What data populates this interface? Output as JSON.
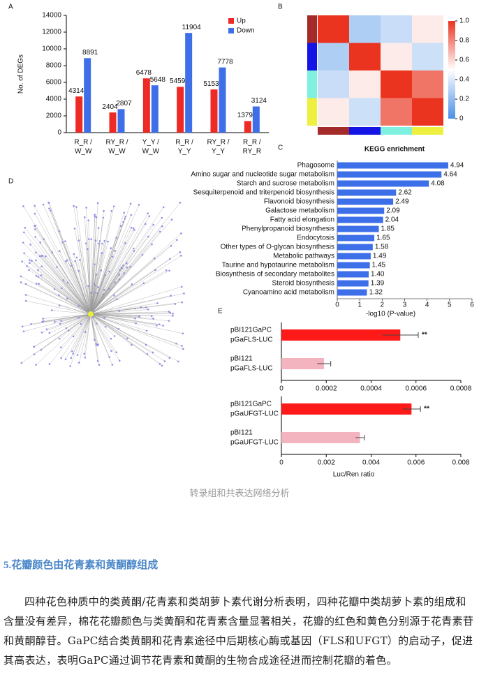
{
  "figure": {
    "panel_a": {
      "letter": "A",
      "type": "bar",
      "y_label": "No. of DEGs",
      "categories": [
        [
          "R_R /",
          "W_W"
        ],
        [
          "RY_R /",
          "W_W"
        ],
        [
          "Y_Y /",
          "W_W"
        ],
        [
          "R_R /",
          "Y_Y"
        ],
        [
          "RY_R /",
          "Y_Y"
        ],
        [
          "R_R /",
          "RY_R"
        ]
      ],
      "series": [
        {
          "name": "Up",
          "color": "#ee2a24",
          "values": [
            4314,
            2404,
            6478,
            5459,
            5153,
            1379
          ]
        },
        {
          "name": "Down",
          "color": "#3f6fe8",
          "values": [
            8891,
            2807,
            5648,
            11904,
            7778,
            3124
          ]
        }
      ],
      "ylim": [
        0,
        14000
      ],
      "yticks": [
        0,
        2000,
        4000,
        6000,
        8000,
        10000,
        12000,
        14000
      ]
    },
    "panel_b": {
      "letter": "B",
      "type": "heatmap",
      "group_colors": [
        "#a52a2a",
        "#1414e6",
        "#80f0e0",
        "#eef040"
      ],
      "values": [
        [
          1,
          0.28,
          0.35,
          0.55
        ],
        [
          0.28,
          1,
          0.55,
          0.36
        ],
        [
          0.35,
          0.55,
          1,
          0.84
        ],
        [
          0.55,
          0.36,
          0.84,
          1
        ]
      ],
      "colormap": [
        "#4a8fe6",
        "#ffffff",
        "#ea3420"
      ],
      "clim": [
        0,
        1
      ],
      "cticks": [
        0,
        0.2,
        0.4,
        0.6,
        0.8,
        {
          "value": 1,
          "label": "1.0"
        }
      ]
    },
    "panel_c": {
      "letter": "C",
      "type": "barh",
      "title": "KEGG enrichment",
      "x_label": "-log10 (P-value)",
      "color": "#3d6fe8",
      "categories": [
        "Phagosome",
        "Amino sugar and nucleotide sugar metabolism",
        "Starch and sucrose metabolism",
        "Sesquiterpenoid and triterpenoid biosynthesis",
        "Flavonoid biosynthesis",
        "Galactose metabolism",
        "Fatty acid elongation",
        "Phenylpropanoid biosynthesis",
        "Endocytosis",
        "Other types of O-glycan biosynthesis",
        "Metabolic pathways",
        "Taurine and hypotaurine metabolism",
        "Biosynthesis of secondary metabolites",
        "Steroid biosynthesis",
        "Cyanoamino acid metabolism"
      ],
      "values": [
        4.94,
        4.64,
        4.08,
        2.62,
        2.49,
        2.09,
        2.04,
        1.85,
        1.65,
        1.58,
        1.49,
        1.45,
        1.4,
        1.39,
        1.32
      ],
      "value_labels": [
        "4.94",
        "4.64",
        "4.08",
        "2.62",
        "2.49",
        "2.09",
        "2.04",
        "1.85",
        "1.65",
        "1.58",
        "1.49",
        "1.45",
        "1.40",
        "1.39",
        "1.32"
      ],
      "xlim": [
        0,
        6
      ],
      "xticks": [
        0,
        1,
        2,
        3,
        4,
        5,
        6
      ]
    },
    "panel_d": {
      "letter": "D"
    },
    "panel_e": {
      "letter": "E",
      "x_label": "Luc/Ren ratio",
      "charts": [
        {
          "type": "barh",
          "categories": [
            [
              "pBI121GaPC",
              "pGaFLS-LUC"
            ],
            [
              "pBI121",
              "pGaFLS-LUC"
            ]
          ],
          "values": [
            0.00053,
            0.00019
          ],
          "errors": [
            8e-05,
            3e-05
          ],
          "colors": [
            "#ff1a1a",
            "#f4b4bf"
          ],
          "annotation": "**",
          "xlim": [
            0,
            0.0008
          ],
          "xticks": [
            0,
            0.0002,
            0.0004,
            0.0006,
            0.0008
          ]
        },
        {
          "type": "barh",
          "categories": [
            [
              "pBI121GaPC",
              "pGaUFGT-LUC"
            ],
            [
              "pBI121",
              "pGaUFGT-LUC"
            ]
          ],
          "values": [
            0.0058,
            0.0035
          ],
          "errors": [
            0.0004,
            0.0002
          ],
          "colors": [
            "#ff1a1a",
            "#f4b4bf"
          ],
          "annotation": "**",
          "xlim": [
            0,
            0.008
          ],
          "xticks": [
            0,
            0.002,
            0.004,
            0.006,
            0.008
          ]
        }
      ]
    }
  },
  "caption": "转录组和共表达网络分析",
  "section_title": "5.花瓣颜色由花青素和黄酮醇组成",
  "paragraph": "四种花色种质中的类黄酮/花青素和类胡萝卜素代谢分析表明，四种花瓣中类胡萝卜素的组成和含量没有差异，棉花花瓣颜色与类黄酮和花青素含量显著相关，花瓣的红色和黄色分别源于花青素苷和黄酮醇苷。GaPC结合类黄酮和花青素途径中后期核心酶或基因（FLS和UFGT）的启动子，促进其高表达，表明GaPC通过调节花青素和黄酮的生物合成途径进而控制花瓣的着色。"
}
